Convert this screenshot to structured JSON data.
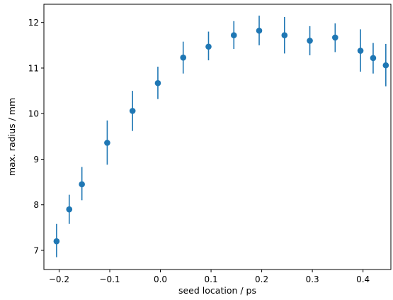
{
  "chart_data": {
    "type": "scatter",
    "title": "",
    "xlabel": "seed location / ps",
    "ylabel": "max. radius / mm",
    "xlim": [
      -0.23,
      0.455
    ],
    "ylim": [
      6.58,
      12.4
    ],
    "xticks": [
      -0.2,
      -0.1,
      0.0,
      0.1,
      0.2,
      0.3,
      0.4
    ],
    "xtick_labels": [
      "−0.2",
      "−0.1",
      "0.0",
      "0.1",
      "0.2",
      "0.3",
      "0.4"
    ],
    "yticks": [
      7,
      8,
      9,
      10,
      11,
      12
    ],
    "ytick_labels": [
      "7",
      "8",
      "9",
      "10",
      "11",
      "12"
    ],
    "grid": false,
    "color": "#1f77b4",
    "series": [
      {
        "x": [
          -0.205,
          -0.18,
          -0.155,
          -0.105,
          -0.055,
          -0.005,
          0.045,
          0.095,
          0.145,
          0.195,
          0.245,
          0.295,
          0.345,
          0.395,
          0.42,
          0.445
        ],
        "y": [
          7.2,
          7.9,
          8.45,
          9.36,
          10.06,
          10.67,
          11.23,
          11.47,
          11.72,
          11.82,
          11.72,
          11.6,
          11.67,
          11.38,
          11.22,
          11.06
        ],
        "yerr_low": [
          6.85,
          7.58,
          8.1,
          8.88,
          9.62,
          10.32,
          10.88,
          11.17,
          11.42,
          11.5,
          11.32,
          11.28,
          11.35,
          10.92,
          10.88,
          10.6
        ],
        "yerr_high": [
          7.58,
          8.22,
          8.83,
          9.85,
          10.5,
          11.03,
          11.58,
          11.8,
          12.03,
          12.15,
          12.12,
          11.92,
          11.98,
          11.85,
          11.55,
          11.53
        ]
      }
    ]
  }
}
